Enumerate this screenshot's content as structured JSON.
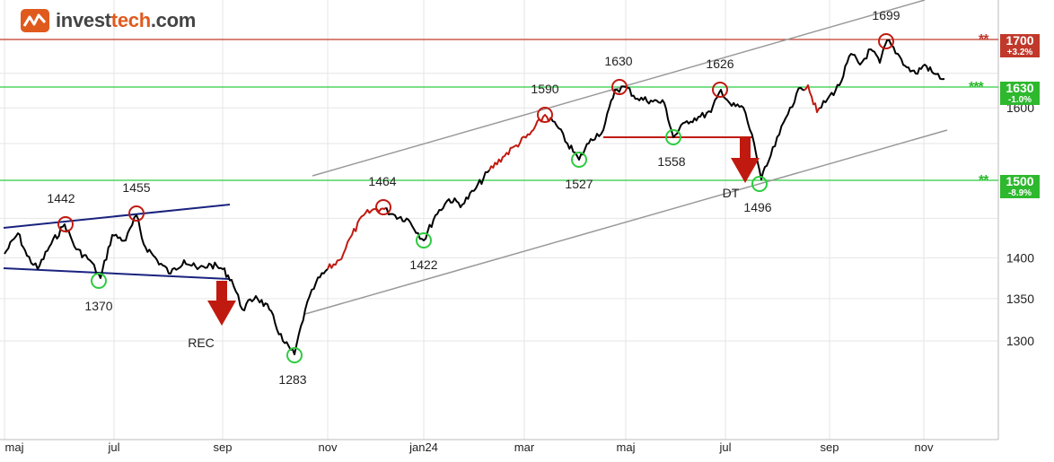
{
  "logo": {
    "part1": "invest",
    "part2": "tech",
    "part3": ".com"
  },
  "chart_data": {
    "type": "line",
    "x_ticks": [
      "maj",
      "jul",
      "sep",
      "nov",
      "jan24",
      "mar",
      "maj",
      "jul",
      "sep",
      "nov"
    ],
    "y_ticks": [
      1300,
      1350,
      1400,
      1600
    ],
    "grid": true,
    "y_scale": "log",
    "levels": [
      {
        "value": "1700",
        "change": "+3.2%",
        "stars": "**",
        "color": "#c0392b"
      },
      {
        "value": "1630",
        "change": "-1.0%",
        "stars": "***",
        "color": "#2eb82e"
      },
      {
        "value": "1500",
        "change": "-8.9%",
        "stars": "**",
        "color": "#2eb82e"
      }
    ],
    "tops": [
      "1442",
      "1455",
      "1464",
      "1590",
      "1630",
      "1626",
      "1699"
    ],
    "bottoms": [
      "1370",
      "1283",
      "1422",
      "1527",
      "1558",
      "1496"
    ],
    "signals": [
      "REC",
      "DT"
    ],
    "colors": {
      "price": "#000000",
      "buy_signal": "#c01a10",
      "support": "#2ecc40",
      "resistance": "#c0392b",
      "trend_channel": "#999999",
      "short_channel": "#1a237e"
    }
  }
}
